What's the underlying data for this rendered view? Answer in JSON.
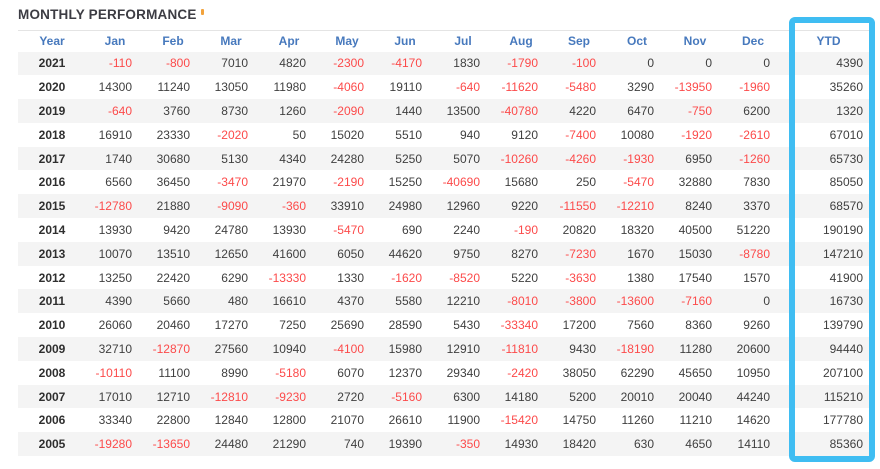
{
  "header": {
    "title": "MONTHLY PERFORMANCE"
  },
  "colors": {
    "title": "#3c3c43",
    "header_text": "#4779bd",
    "positive": "#3f3f3f",
    "year": "#2f2f2f",
    "negative": "#fc4a4a",
    "stripe": "#f4f4f4",
    "table_border": "#e4e4e4",
    "highlight": "#3fbdf2",
    "marker": "#f2a33c"
  },
  "table": {
    "columns": [
      "Year",
      "Jan",
      "Feb",
      "Mar",
      "Apr",
      "May",
      "Jun",
      "Jul",
      "Aug",
      "Sep",
      "Oct",
      "Nov",
      "Dec",
      "YTD"
    ],
    "rows": [
      {
        "year": "2021",
        "months": [
          -110,
          -800,
          7010,
          4820,
          -2300,
          -4170,
          1830,
          -1790,
          -100,
          0,
          0,
          0
        ],
        "ytd": 4390
      },
      {
        "year": "2020",
        "months": [
          14300,
          11240,
          13050,
          11980,
          -4060,
          19110,
          -640,
          -11620,
          -5480,
          3290,
          -13950,
          -1960
        ],
        "ytd": 35260
      },
      {
        "year": "2019",
        "months": [
          -640,
          3760,
          8730,
          1260,
          -2090,
          1440,
          13500,
          -40780,
          4220,
          6470,
          -750,
          6200
        ],
        "ytd": 1320
      },
      {
        "year": "2018",
        "months": [
          16910,
          23330,
          -2020,
          50,
          15020,
          5510,
          940,
          9120,
          -7400,
          10080,
          -1920,
          -2610
        ],
        "ytd": 67010
      },
      {
        "year": "2017",
        "months": [
          1740,
          30680,
          5130,
          4340,
          24280,
          5250,
          5070,
          -10260,
          -4260,
          -1930,
          6950,
          -1260
        ],
        "ytd": 65730
      },
      {
        "year": "2016",
        "months": [
          6560,
          36450,
          -3470,
          21970,
          -2190,
          15250,
          -40690,
          15680,
          250,
          -5470,
          32880,
          7830
        ],
        "ytd": 85050
      },
      {
        "year": "2015",
        "months": [
          -12780,
          21880,
          -9090,
          -360,
          33910,
          24980,
          12960,
          9220,
          -11550,
          -12210,
          8240,
          3370
        ],
        "ytd": 68570
      },
      {
        "year": "2014",
        "months": [
          13930,
          9420,
          24780,
          13930,
          -5470,
          690,
          2240,
          -190,
          20820,
          18320,
          40500,
          51220
        ],
        "ytd": 190190
      },
      {
        "year": "2013",
        "months": [
          10070,
          13510,
          12650,
          41600,
          6050,
          44620,
          9750,
          8270,
          -7230,
          1670,
          15030,
          -8780
        ],
        "ytd": 147210
      },
      {
        "year": "2012",
        "months": [
          13250,
          22420,
          6290,
          -13330,
          1330,
          -1620,
          -8520,
          5220,
          -3630,
          1380,
          17540,
          1570
        ],
        "ytd": 41900
      },
      {
        "year": "2011",
        "months": [
          4390,
          5660,
          480,
          16610,
          4370,
          5580,
          12210,
          -8010,
          -3800,
          -13600,
          -7160,
          0
        ],
        "ytd": 16730
      },
      {
        "year": "2010",
        "months": [
          26060,
          20460,
          17270,
          7250,
          25690,
          28590,
          5430,
          -33340,
          17200,
          7560,
          8360,
          9260
        ],
        "ytd": 139790
      },
      {
        "year": "2009",
        "months": [
          32710,
          -12870,
          27560,
          10940,
          -4100,
          15980,
          12910,
          -11810,
          9430,
          -18190,
          11280,
          20600
        ],
        "ytd": 94440
      },
      {
        "year": "2008",
        "months": [
          -10110,
          11100,
          8990,
          -5180,
          6070,
          12370,
          29340,
          -2420,
          38050,
          62290,
          45650,
          10950
        ],
        "ytd": 207100
      },
      {
        "year": "2007",
        "months": [
          17010,
          12710,
          -12810,
          -9230,
          2720,
          -5160,
          6300,
          14180,
          5200,
          20010,
          20040,
          44240
        ],
        "ytd": 115210
      },
      {
        "year": "2006",
        "months": [
          33340,
          22800,
          12840,
          12800,
          21070,
          26610,
          11900,
          -15420,
          14750,
          11260,
          11210,
          14620
        ],
        "ytd": 177780
      },
      {
        "year": "2005",
        "months": [
          -19280,
          -13650,
          24480,
          21290,
          740,
          19390,
          -350,
          14930,
          18420,
          630,
          4650,
          14110
        ],
        "ytd": 85360
      }
    ]
  }
}
